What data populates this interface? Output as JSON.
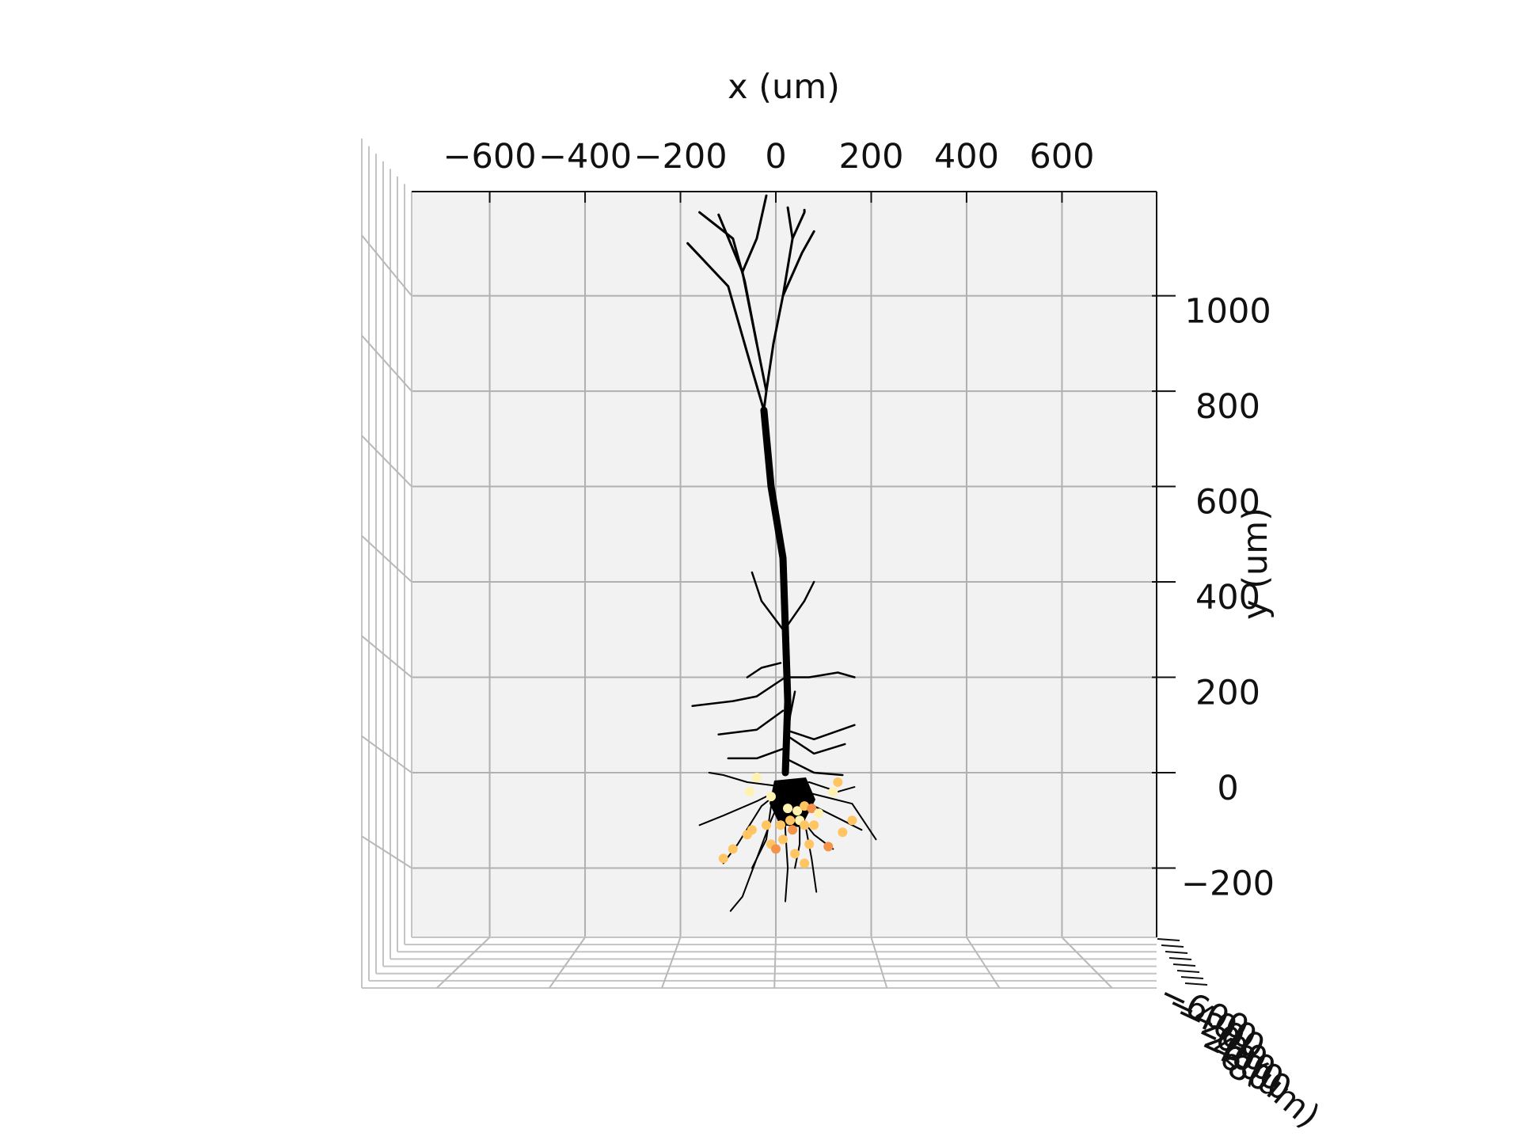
{
  "chart_data": {
    "type": "scatter",
    "projection": "3d",
    "title": "",
    "xlabel": "x (um)",
    "ylabel": "y (um)",
    "zlabel": "z (um)",
    "x_ticks": [
      -600,
      -400,
      -200,
      0,
      200,
      400,
      600
    ],
    "y_ticks": [
      1000,
      800,
      600,
      400,
      200,
      0,
      -200
    ],
    "z_ticks": [
      -600,
      -400,
      -200,
      0,
      200,
      400,
      600,
      800
    ],
    "xlim": [
      -760,
      800
    ],
    "ylim": [
      -345,
      1215
    ],
    "grid": true,
    "legend": "none",
    "colors": {
      "pane": "#f2f2f2",
      "grid": "#b0b0b0",
      "morphology": "#000000",
      "points_light": "#fff2b0",
      "points_mid": "#ffc562",
      "points_dark": "#f5934a"
    },
    "morphology_segments": [
      {
        "type": "apical",
        "points": [
          [
            20,
            0
          ],
          [
            25,
            150
          ],
          [
            20,
            300
          ],
          [
            15,
            450
          ],
          [
            -10,
            600
          ],
          [
            -25,
            760
          ],
          [
            -20,
            800
          ],
          [
            -40,
            900
          ],
          [
            -70,
            1050
          ],
          [
            -120,
            1170
          ]
        ]
      },
      {
        "type": "apical",
        "points": [
          [
            -20,
            800
          ],
          [
            -5,
            900
          ],
          [
            15,
            1000
          ],
          [
            35,
            1120
          ],
          [
            25,
            1185
          ]
        ]
      },
      {
        "type": "apical",
        "points": [
          [
            -40,
            900
          ],
          [
            -65,
            1030
          ],
          [
            -90,
            1120
          ],
          [
            -160,
            1175
          ]
        ]
      },
      {
        "type": "apical",
        "points": [
          [
            -25,
            760
          ],
          [
            -60,
            880
          ],
          [
            -100,
            1020
          ],
          [
            -185,
            1110
          ]
        ]
      },
      {
        "type": "apical",
        "points": [
          [
            15,
            1000
          ],
          [
            55,
            1090
          ],
          [
            80,
            1135
          ]
        ]
      },
      {
        "type": "apical",
        "points": [
          [
            -70,
            1050
          ],
          [
            -40,
            1120
          ],
          [
            -20,
            1210
          ]
        ]
      },
      {
        "type": "apical",
        "points": [
          [
            35,
            1120
          ],
          [
            60,
            1175
          ],
          [
            60,
            1180
          ]
        ]
      },
      {
        "type": "oblique",
        "points": [
          [
            20,
            200
          ],
          [
            -40,
            160
          ],
          [
            -90,
            150
          ],
          [
            -175,
            140
          ]
        ]
      },
      {
        "type": "oblique",
        "points": [
          [
            20,
            200
          ],
          [
            70,
            200
          ],
          [
            130,
            210
          ],
          [
            165,
            200
          ]
        ]
      },
      {
        "type": "oblique",
        "points": [
          [
            15,
            130
          ],
          [
            -40,
            90
          ],
          [
            -120,
            80
          ]
        ]
      },
      {
        "type": "oblique",
        "points": [
          [
            20,
            90
          ],
          [
            80,
            70
          ],
          [
            165,
            100
          ]
        ]
      },
      {
        "type": "oblique",
        "points": [
          [
            20,
            80
          ],
          [
            80,
            40
          ],
          [
            145,
            60
          ]
        ]
      },
      {
        "type": "oblique",
        "points": [
          [
            10,
            230
          ],
          [
            -30,
            220
          ],
          [
            -60,
            200
          ]
        ]
      },
      {
        "type": "oblique",
        "points": [
          [
            15,
            50
          ],
          [
            -40,
            30
          ],
          [
            -100,
            30
          ]
        ]
      },
      {
        "type": "oblique",
        "points": [
          [
            20,
            30
          ],
          [
            80,
            0
          ],
          [
            140,
            -5
          ]
        ]
      },
      {
        "type": "oblique",
        "points": [
          [
            15,
            300
          ],
          [
            -30,
            360
          ],
          [
            -50,
            420
          ]
        ]
      },
      {
        "type": "oblique",
        "points": [
          [
            25,
            310
          ],
          [
            60,
            360
          ],
          [
            80,
            400
          ]
        ]
      },
      {
        "type": "oblique",
        "points": [
          [
            20,
            40
          ],
          [
            30,
            120
          ],
          [
            40,
            170
          ]
        ]
      },
      {
        "type": "basal",
        "points": [
          [
            20,
            -30
          ],
          [
            -40,
            -60
          ],
          [
            -110,
            -90
          ],
          [
            -160,
            -110
          ]
        ]
      },
      {
        "type": "basal",
        "points": [
          [
            20,
            -30
          ],
          [
            -10,
            -100
          ],
          [
            -40,
            -180
          ],
          [
            -70,
            -260
          ],
          [
            -95,
            -290
          ]
        ]
      },
      {
        "type": "basal",
        "points": [
          [
            20,
            -30
          ],
          [
            20,
            -120
          ],
          [
            25,
            -200
          ],
          [
            20,
            -270
          ]
        ]
      },
      {
        "type": "basal",
        "points": [
          [
            20,
            -30
          ],
          [
            60,
            -100
          ],
          [
            75,
            -180
          ],
          [
            85,
            -250
          ]
        ]
      },
      {
        "type": "basal",
        "points": [
          [
            20,
            -30
          ],
          [
            80,
            -70
          ],
          [
            140,
            -100
          ],
          [
            180,
            -120
          ]
        ]
      },
      {
        "type": "basal",
        "points": [
          [
            20,
            -30
          ],
          [
            -60,
            -20
          ],
          [
            -110,
            -5
          ],
          [
            -140,
            0
          ]
        ]
      },
      {
        "type": "basal",
        "points": [
          [
            20,
            -30
          ],
          [
            70,
            -20
          ],
          [
            130,
            -40
          ],
          [
            165,
            -30
          ]
        ]
      },
      {
        "type": "basal",
        "points": [
          [
            20,
            -30
          ],
          [
            -30,
            -70
          ],
          [
            -80,
            -150
          ],
          [
            -110,
            -190
          ]
        ]
      },
      {
        "type": "basal",
        "points": [
          [
            20,
            -30
          ],
          [
            40,
            -80
          ],
          [
            80,
            -130
          ],
          [
            120,
            -160
          ]
        ]
      },
      {
        "type": "basal",
        "points": [
          [
            20,
            -30
          ],
          [
            -10,
            -70
          ],
          [
            -20,
            -140
          ],
          [
            -50,
            -200
          ]
        ]
      },
      {
        "type": "basal",
        "points": [
          [
            20,
            -30
          ],
          [
            50,
            -80
          ],
          [
            50,
            -150
          ],
          [
            40,
            -200
          ]
        ]
      },
      {
        "type": "basal",
        "points": [
          [
            20,
            -30
          ],
          [
            100,
            -50
          ],
          [
            160,
            -65
          ],
          [
            210,
            -140
          ]
        ]
      }
    ],
    "points": [
      {
        "x": -40,
        "y": -10,
        "shade": "light"
      },
      {
        "x": -10,
        "y": -50,
        "shade": "light"
      },
      {
        "x": 25,
        "y": -75,
        "shade": "light"
      },
      {
        "x": 45,
        "y": -80,
        "shade": "light"
      },
      {
        "x": 60,
        "y": -70,
        "shade": "mid"
      },
      {
        "x": 75,
        "y": -75,
        "shade": "dark"
      },
      {
        "x": 30,
        "y": -100,
        "shade": "mid"
      },
      {
        "x": 10,
        "y": -110,
        "shade": "mid"
      },
      {
        "x": -20,
        "y": -110,
        "shade": "mid"
      },
      {
        "x": -50,
        "y": -120,
        "shade": "mid"
      },
      {
        "x": -60,
        "y": -130,
        "shade": "mid"
      },
      {
        "x": 50,
        "y": -100,
        "shade": "light"
      },
      {
        "x": 60,
        "y": -110,
        "shade": "mid"
      },
      {
        "x": 80,
        "y": -110,
        "shade": "mid"
      },
      {
        "x": 35,
        "y": -120,
        "shade": "dark"
      },
      {
        "x": 15,
        "y": -140,
        "shade": "mid"
      },
      {
        "x": -10,
        "y": -150,
        "shade": "mid"
      },
      {
        "x": 70,
        "y": -150,
        "shade": "mid"
      },
      {
        "x": 120,
        "y": -40,
        "shade": "light"
      },
      {
        "x": 130,
        "y": -20,
        "shade": "mid"
      },
      {
        "x": 160,
        "y": -100,
        "shade": "mid"
      },
      {
        "x": 140,
        "y": -125,
        "shade": "mid"
      },
      {
        "x": 110,
        "y": -155,
        "shade": "dark"
      },
      {
        "x": -90,
        "y": -160,
        "shade": "mid"
      },
      {
        "x": -110,
        "y": -180,
        "shade": "mid"
      },
      {
        "x": 0,
        "y": -160,
        "shade": "dark"
      },
      {
        "x": 40,
        "y": -170,
        "shade": "mid"
      },
      {
        "x": 60,
        "y": -190,
        "shade": "mid"
      },
      {
        "x": -55,
        "y": -40,
        "shade": "light"
      },
      {
        "x": 90,
        "y": -85,
        "shade": "light"
      }
    ]
  }
}
